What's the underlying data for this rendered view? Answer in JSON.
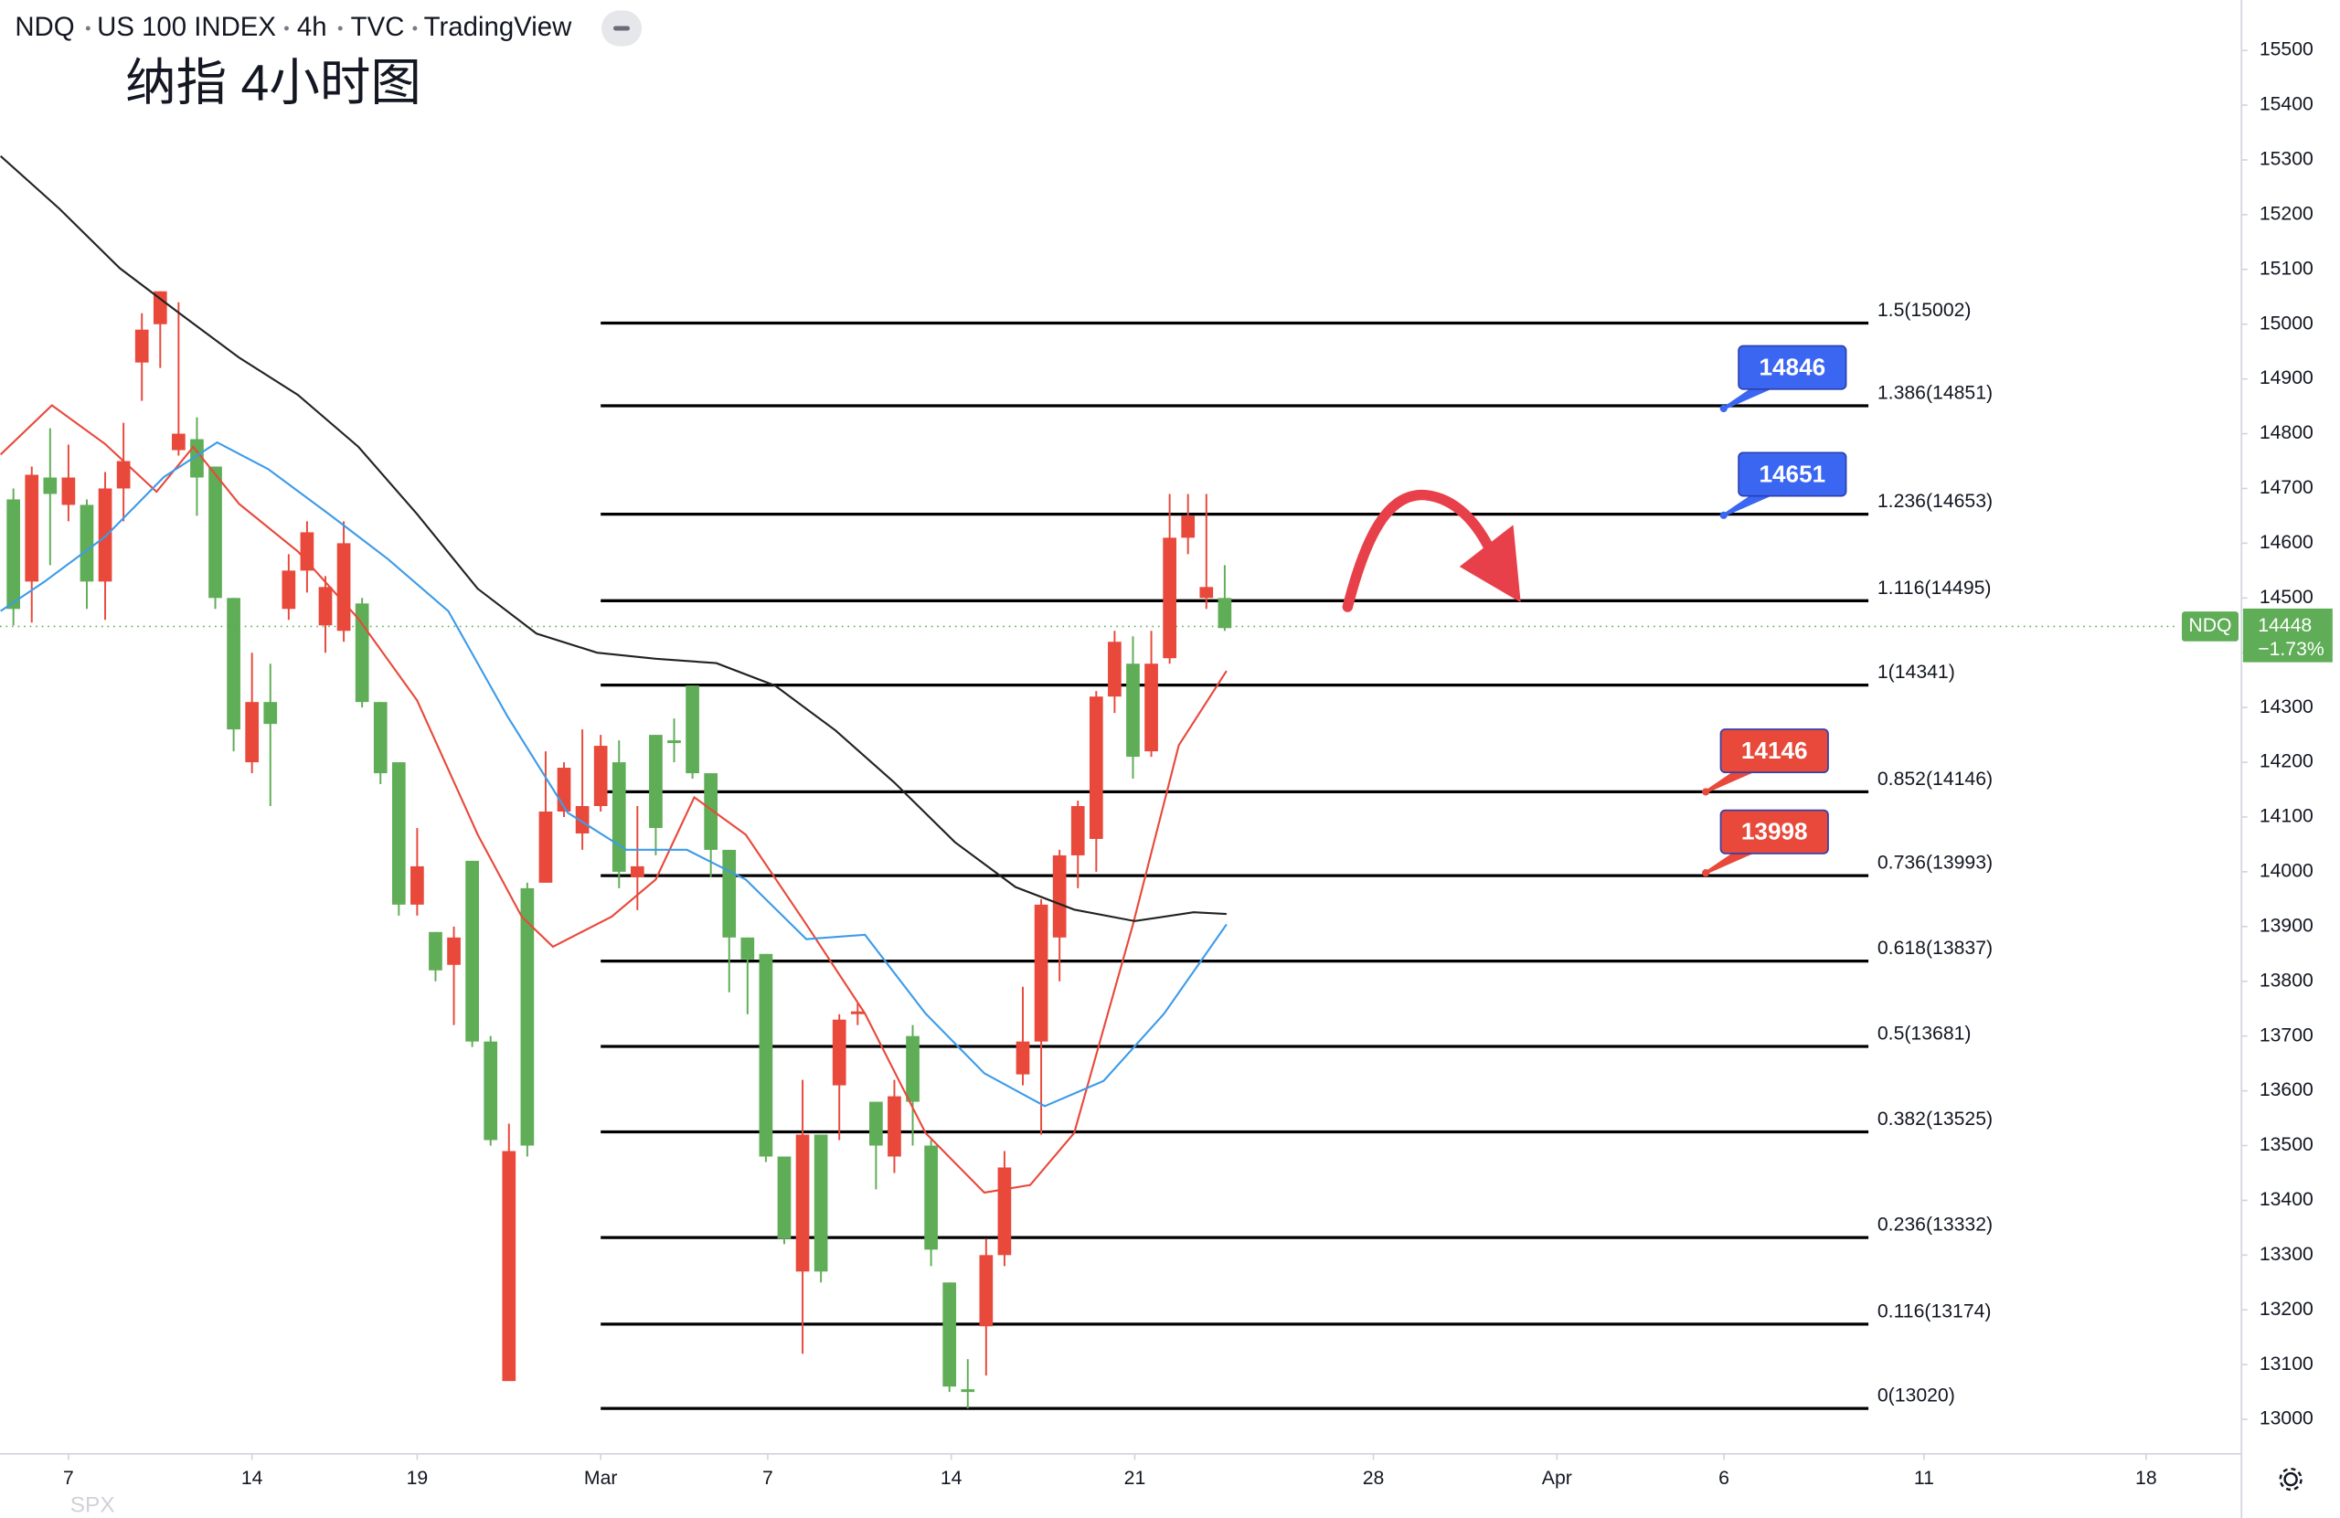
{
  "header": {
    "symbol": "NDQ",
    "name": "US 100 INDEX",
    "interval": "4h",
    "source": "TVC",
    "platform": "TradingView"
  },
  "chart_data": {
    "type": "candlestick",
    "title": "纳指 4小时图",
    "up_color": "#5fad56",
    "down_color": "#e8493b",
    "ohlc": [
      [
        14480,
        14700,
        14450,
        14680
      ],
      [
        14725,
        14740,
        14455,
        14530
      ],
      [
        14690,
        14810,
        14560,
        14720
      ],
      [
        14720,
        14780,
        14640,
        14670
      ],
      [
        14530,
        14680,
        14480,
        14670
      ],
      [
        14700,
        14730,
        14460,
        14530
      ],
      [
        14750,
        14820,
        14640,
        14700
      ],
      [
        14990,
        15020,
        14860,
        14930
      ],
      [
        15060,
        15060,
        14920,
        15000
      ],
      [
        14800,
        15040,
        14760,
        14770
      ],
      [
        14720,
        14830,
        14650,
        14790
      ],
      [
        14500,
        14740,
        14480,
        14740
      ],
      [
        14260,
        14500,
        14220,
        14500
      ],
      [
        14310,
        14400,
        14180,
        14200
      ],
      [
        14270,
        14380,
        14120,
        14310
      ],
      [
        14550,
        14580,
        14460,
        14480
      ],
      [
        14620,
        14640,
        14510,
        14550
      ],
      [
        14520,
        14540,
        14400,
        14450
      ],
      [
        14600,
        14640,
        14420,
        14440
      ],
      [
        14310,
        14500,
        14300,
        14490
      ],
      [
        14180,
        14310,
        14160,
        14310
      ],
      [
        13940,
        14200,
        13920,
        14200
      ],
      [
        14010,
        14080,
        13920,
        13940
      ],
      [
        13820,
        13890,
        13800,
        13890
      ],
      [
        13880,
        13900,
        13720,
        13830
      ],
      [
        13690,
        14020,
        13680,
        14020
      ],
      [
        13510,
        13700,
        13500,
        13690
      ],
      [
        13490,
        13540,
        13070,
        13070
      ],
      [
        13500,
        13980,
        13480,
        13970
      ],
      [
        14110,
        14220,
        13980,
        13980
      ],
      [
        14190,
        14200,
        14100,
        14110
      ],
      [
        14120,
        14260,
        14040,
        14070
      ],
      [
        14230,
        14250,
        14110,
        14120
      ],
      [
        14000,
        14240,
        13970,
        14200
      ],
      [
        14010,
        14120,
        13930,
        13990
      ],
      [
        14080,
        14250,
        14030,
        14250
      ],
      [
        14235,
        14280,
        14200,
        14240
      ],
      [
        14180,
        14340,
        14170,
        14340
      ],
      [
        14040,
        14180,
        13990,
        14180
      ],
      [
        13880,
        14040,
        13780,
        14040
      ],
      [
        13840,
        13880,
        13740,
        13880
      ],
      [
        13480,
        13850,
        13470,
        13850
      ],
      [
        13330,
        13480,
        13320,
        13480
      ],
      [
        13520,
        13620,
        13120,
        13270
      ],
      [
        13270,
        13520,
        13250,
        13520
      ],
      [
        13730,
        13740,
        13510,
        13610
      ],
      [
        13745,
        13760,
        13720,
        13740
      ],
      [
        13500,
        13580,
        13420,
        13580
      ],
      [
        13590,
        13620,
        13450,
        13480
      ],
      [
        13580,
        13720,
        13500,
        13700
      ],
      [
        13310,
        13510,
        13280,
        13500
      ],
      [
        13060,
        13250,
        13050,
        13250
      ],
      [
        13050,
        13110,
        13020,
        13055
      ],
      [
        13300,
        13330,
        13080,
        13170
      ],
      [
        13460,
        13490,
        13280,
        13300
      ],
      [
        13690,
        13790,
        13610,
        13630
      ],
      [
        13940,
        13950,
        13520,
        13690
      ],
      [
        14030,
        14040,
        13800,
        13880
      ],
      [
        14120,
        14130,
        13970,
        14030
      ],
      [
        14320,
        14330,
        14000,
        14060
      ],
      [
        14420,
        14440,
        14290,
        14320
      ],
      [
        14210,
        14430,
        14170,
        14380
      ],
      [
        14380,
        14440,
        14210,
        14220
      ],
      [
        14610,
        14690,
        14380,
        14390
      ],
      [
        14650,
        14690,
        14580,
        14610
      ],
      [
        14520,
        14690,
        14480,
        14500
      ],
      [
        14445,
        14560,
        14440,
        14500
      ]
    ],
    "lines": [
      {
        "color": "#e8493b",
        "x": [
          -0.7,
          2.1,
          5,
          7.8,
          9.8,
          12.3,
          15.5,
          18.8,
          22,
          25.3,
          27.7,
          29.4,
          32.6,
          35,
          37.1,
          39.9,
          43.2,
          46.4,
          49.7,
          52.9,
          55.4,
          57.8,
          61,
          63.5,
          66.1
        ],
        "values": [
          14762,
          14852,
          14781,
          14694,
          14776,
          14672,
          14585,
          14462,
          14313,
          14068,
          13918,
          13863,
          13918,
          13986,
          14136,
          14068,
          13904,
          13741,
          13523,
          13414,
          13428,
          13523,
          13904,
          14231,
          14367
        ]
      },
      {
        "color": "#3d9be9",
        "x": [
          -0.7,
          1.7,
          5,
          8.2,
          11.1,
          13.9,
          17.2,
          20.4,
          23.7,
          26.9,
          30.2,
          33.4,
          36.7,
          39.9,
          43.2,
          46.4,
          49.7,
          52.9,
          56.2,
          59.4,
          62.7,
          66.1
        ],
        "values": [
          14476,
          14530,
          14612,
          14721,
          14784,
          14735,
          14653,
          14571,
          14476,
          14285,
          14108,
          14040,
          14040,
          13986,
          13877,
          13885,
          13741,
          13632,
          13572,
          13618,
          13741,
          13904
        ]
      },
      {
        "color": "#222222",
        "x": [
          -0.7,
          2.5,
          5.8,
          9,
          12.3,
          15.5,
          18.8,
          22,
          25.3,
          28.5,
          31.8,
          35,
          38.3,
          41.5,
          44.8,
          48,
          51.3,
          54.6,
          57.8,
          61.1,
          64.3,
          66.1
        ],
        "values": [
          15307,
          15211,
          15102,
          15021,
          14939,
          14871,
          14776,
          14653,
          14517,
          14435,
          14400,
          14389,
          14381,
          14340,
          14258,
          14163,
          14054,
          13972,
          13931,
          13910,
          13926,
          13923
        ]
      }
    ],
    "ylim": [
      12937,
      15592
    ],
    "yticks": [
      13000,
      13100,
      13200,
      13300,
      13400,
      13500,
      13600,
      13700,
      13800,
      13900,
      14000,
      14100,
      14200,
      14300,
      14400,
      14500,
      14600,
      14700,
      14800,
      14900,
      15000,
      15100,
      15200,
      15300,
      15400,
      15500
    ],
    "xlim": [
      -0.73,
      121.4
    ],
    "xticks": [
      {
        "value": 3,
        "label": "7"
      },
      {
        "value": 13,
        "label": "14"
      },
      {
        "value": 22,
        "label": "19"
      },
      {
        "value": 32,
        "label": "Mar"
      },
      {
        "value": 41.1,
        "label": "7"
      },
      {
        "value": 51.1,
        "label": "14"
      },
      {
        "value": 61.1,
        "label": "21"
      },
      {
        "value": 74.1,
        "label": "28"
      },
      {
        "value": 84.1,
        "label": "Apr"
      },
      {
        "value": 93.2,
        "label": "6"
      },
      {
        "value": 104.1,
        "label": "11"
      },
      {
        "value": 116.2,
        "label": "18"
      }
    ],
    "fib_color": "#000000",
    "fib_levels": [
      {
        "label": "1.5(15002)",
        "value": 15002
      },
      {
        "label": "1.386(14851)",
        "value": 14851
      },
      {
        "label": "1.236(14653)",
        "value": 14653
      },
      {
        "label": "1.116(14495)",
        "value": 14495
      },
      {
        "label": "1(14341)",
        "value": 14341
      },
      {
        "label": "0.852(14146)",
        "value": 14146
      },
      {
        "label": "0.736(13993)",
        "value": 13993
      },
      {
        "label": "0.618(13837)",
        "value": 13837
      },
      {
        "label": "0.5(13681)",
        "value": 13681
      },
      {
        "label": "0.382(13525)",
        "value": 13525
      },
      {
        "label": "0.236(13332)",
        "value": 13332
      },
      {
        "label": "0.116(13174)",
        "value": 13174
      },
      {
        "label": "0(13020)",
        "value": 13020
      }
    ],
    "callouts": [
      {
        "value": 14846,
        "color": "#3a66f2"
      },
      {
        "value": 14651,
        "color": "#3a66f2"
      },
      {
        "value": 14146,
        "color": "#e8493b"
      },
      {
        "value": 13998,
        "color": "#e8493b"
      }
    ],
    "last_price": {
      "symbol": "NDQ",
      "value": 14448,
      "change": "−1.73%",
      "color": "#5fad56"
    },
    "watermark": "SPX"
  }
}
